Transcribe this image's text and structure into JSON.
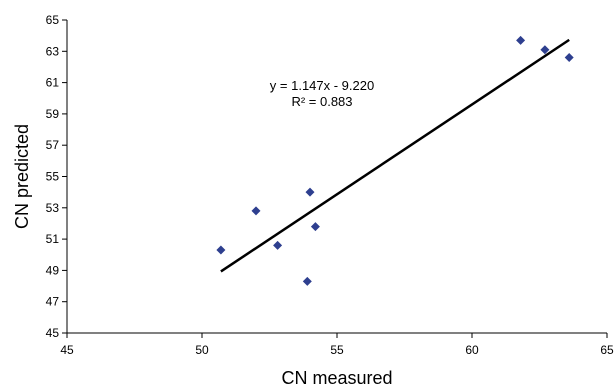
{
  "chart_data": {
    "type": "scatter",
    "title": "",
    "xlabel": "CN measured",
    "ylabel": "CN predicted",
    "xlim": [
      45,
      65
    ],
    "ylim": [
      45,
      65
    ],
    "xticks": [
      45,
      50,
      55,
      60,
      65
    ],
    "yticks": [
      45,
      47,
      49,
      51,
      53,
      55,
      57,
      59,
      61,
      63,
      65
    ],
    "grid": false,
    "legend": "none",
    "marker_color": "#2E3F8F",
    "line_color": "#000000",
    "series": [
      {
        "points": [
          {
            "x": 50.7,
            "y": 50.3
          },
          {
            "x": 52.0,
            "y": 52.8
          },
          {
            "x": 52.8,
            "y": 50.6
          },
          {
            "x": 53.9,
            "y": 48.3
          },
          {
            "x": 54.0,
            "y": 54.0
          },
          {
            "x": 54.2,
            "y": 51.8
          },
          {
            "x": 61.8,
            "y": 63.7
          },
          {
            "x": 62.7,
            "y": 63.1
          },
          {
            "x": 63.6,
            "y": 62.6
          }
        ]
      }
    ],
    "trendline": {
      "slope": 1.147,
      "intercept": -9.22,
      "x_start": 50.7,
      "x_end": 63.6,
      "equation_label": "y = 1.147x - 9.220",
      "r2_label": "R² = 0.883"
    }
  }
}
